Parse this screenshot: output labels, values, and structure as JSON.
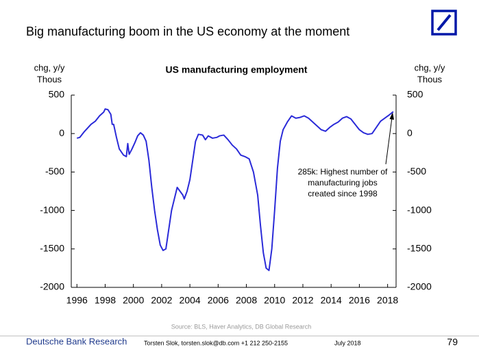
{
  "slide_title": "Big manufacturing boom in the US economy at the moment",
  "chart_data": {
    "type": "line",
    "title": "US manufacturing employment",
    "y_axis_label": [
      "chg, y/y",
      "Thous"
    ],
    "y2_axis_label": [
      "chg, y/y",
      "Thous"
    ],
    "x": [
      1996.0,
      1996.2,
      1996.5,
      1996.8,
      1997.0,
      1997.3,
      1997.6,
      1997.9,
      1998.0,
      1998.2,
      1998.4,
      1998.5,
      1998.6,
      1998.8,
      1999.0,
      1999.3,
      1999.5,
      1999.6,
      1999.7,
      1999.9,
      2000.1,
      2000.3,
      2000.5,
      2000.7,
      2000.9,
      2001.1,
      2001.3,
      2001.5,
      2001.7,
      2001.9,
      2002.1,
      2002.3,
      2002.5,
      2002.7,
      2002.9,
      2003.1,
      2003.3,
      2003.5,
      2003.6,
      2003.8,
      2004.0,
      2004.2,
      2004.4,
      2004.6,
      2004.9,
      2005.1,
      2005.3,
      2005.6,
      2005.9,
      2006.1,
      2006.4,
      2006.7,
      2007.0,
      2007.3,
      2007.6,
      2007.9,
      2008.2,
      2008.5,
      2008.8,
      2009.0,
      2009.2,
      2009.4,
      2009.6,
      2009.8,
      2010.0,
      2010.2,
      2010.4,
      2010.6,
      2010.9,
      2011.2,
      2011.5,
      2011.8,
      2012.1,
      2012.4,
      2012.7,
      2013.0,
      2013.3,
      2013.6,
      2013.9,
      2014.2,
      2014.5,
      2014.8,
      2015.1,
      2015.4,
      2015.7,
      2016.0,
      2016.3,
      2016.6,
      2016.9,
      2017.2,
      2017.5,
      2017.8,
      2018.1,
      2018.4
    ],
    "series": [
      {
        "name": "US manufacturing employment",
        "color": "#2a2ad8",
        "values": [
          -60,
          -50,
          20,
          80,
          120,
          160,
          230,
          280,
          320,
          310,
          250,
          120,
          120,
          -50,
          -200,
          -280,
          -300,
          -130,
          -270,
          -200,
          -120,
          -30,
          10,
          -20,
          -100,
          -350,
          -700,
          -1000,
          -1250,
          -1450,
          -1520,
          -1500,
          -1250,
          -1000,
          -850,
          -700,
          -750,
          -800,
          -850,
          -750,
          -600,
          -350,
          -100,
          -10,
          -20,
          -80,
          -30,
          -60,
          -50,
          -30,
          -20,
          -80,
          -150,
          -200,
          -280,
          -300,
          -330,
          -500,
          -800,
          -1200,
          -1550,
          -1750,
          -1780,
          -1500,
          -1000,
          -450,
          -100,
          50,
          150,
          230,
          200,
          210,
          230,
          200,
          150,
          100,
          50,
          30,
          80,
          120,
          150,
          200,
          220,
          190,
          120,
          50,
          10,
          -10,
          0,
          80,
          160,
          200,
          240,
          285
        ]
      }
    ],
    "xlim": [
      1995.6,
      2018.6
    ],
    "xticks": [
      1996,
      1998,
      2000,
      2002,
      2004,
      2006,
      2008,
      2010,
      2012,
      2014,
      2016,
      2018
    ],
    "ylim": [
      -2000,
      500
    ],
    "yticks": [
      -2000,
      -1500,
      -1000,
      -500,
      0,
      500
    ],
    "y2lim": [
      -2000,
      500
    ],
    "y2ticks": [
      -2000,
      -1500,
      -1000,
      -500,
      0,
      500
    ],
    "annotation": [
      "285k: Highest number of",
      "manufacturing jobs",
      "created since 1998"
    ],
    "source": "Source: BLS, Haver Analytics, DB Global Research"
  },
  "footer": {
    "brand": "Deutsche Bank Research",
    "contact": "Torsten Slok, torsten.slok@db.com +1 212 250-2155",
    "date": "July 2018",
    "page": "79"
  }
}
